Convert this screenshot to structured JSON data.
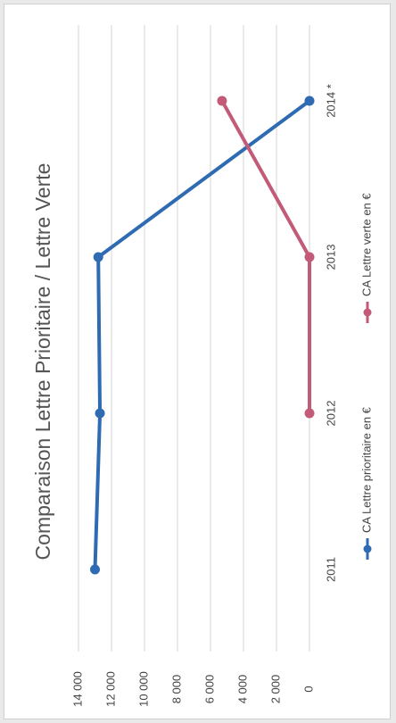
{
  "colors": {
    "series1": "#2e6bb2",
    "series2": "#c25a78",
    "grid": "#d6d6d6",
    "text": "#444444"
  },
  "chart_data": {
    "type": "line",
    "orientation": "rotated-90-clockwise",
    "title": "Comparaison Lettre Prioritaire / Lettre Verte",
    "categories": [
      "2011",
      "2012",
      "2013",
      "2014 *"
    ],
    "series": [
      {
        "name": "CA Lettre prioritaire en €",
        "values": [
          13000,
          12700,
          12800,
          0
        ]
      },
      {
        "name": "CA Lettre verte en €",
        "values": [
          null,
          0,
          0,
          5300
        ]
      }
    ],
    "ylim": [
      0,
      14000
    ],
    "yticks": [
      "0",
      "2 000",
      "4 000",
      "6 000",
      "8 000",
      "10 000",
      "12 000",
      "14 000"
    ],
    "grid": true,
    "legend": "bottom"
  }
}
